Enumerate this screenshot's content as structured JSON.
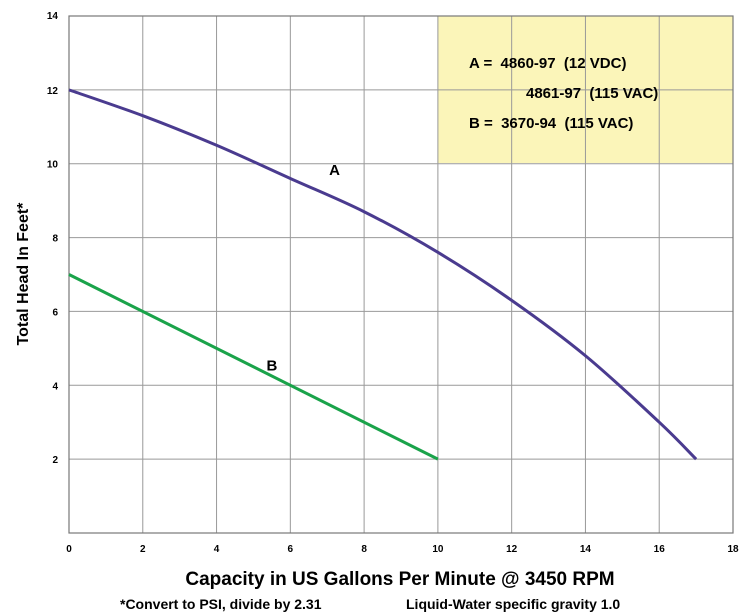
{
  "chart_data": {
    "type": "line",
    "xlabel": "Capacity in US Gallons Per Minute @ 3450 RPM",
    "ylabel": "Total Head In Feet*",
    "xlim": [
      0,
      18
    ],
    "ylim": [
      0,
      14
    ],
    "x_ticks": [
      "0",
      "2",
      "4",
      "6",
      "8",
      "10",
      "12",
      "14",
      "16",
      "18"
    ],
    "y_ticks": [
      "2",
      "4",
      "6",
      "8",
      "10",
      "12",
      "14"
    ],
    "grid": true,
    "series": [
      {
        "name": "A",
        "color": "#4a3b8f",
        "points": [
          [
            0,
            12.0
          ],
          [
            2,
            11.3
          ],
          [
            4,
            10.5
          ],
          [
            6,
            9.6
          ],
          [
            8,
            8.7
          ],
          [
            10,
            7.6
          ],
          [
            12,
            6.3
          ],
          [
            14,
            4.8
          ],
          [
            16,
            3.0
          ],
          [
            17,
            2.0
          ]
        ]
      },
      {
        "name": "B",
        "color": "#1aa34a",
        "points": [
          [
            0,
            7.0
          ],
          [
            10,
            2.0
          ]
        ]
      }
    ],
    "curve_labels": [
      {
        "text": "A",
        "x": 7.2,
        "y": 9.7
      },
      {
        "text": "B",
        "x": 5.5,
        "y": 4.4
      }
    ],
    "legend": {
      "position": "top-right",
      "background": "#fbf5b9",
      "lines": [
        "A =  4860-97  (12 VDC)",
        "4861-97  (115 VAC)",
        "B =  3670-94  (115 VAC)"
      ]
    },
    "footnote": {
      "left": "*Convert to PSI, divide by 2.31",
      "right": "Liquid-Water specific gravity 1.0"
    }
  }
}
